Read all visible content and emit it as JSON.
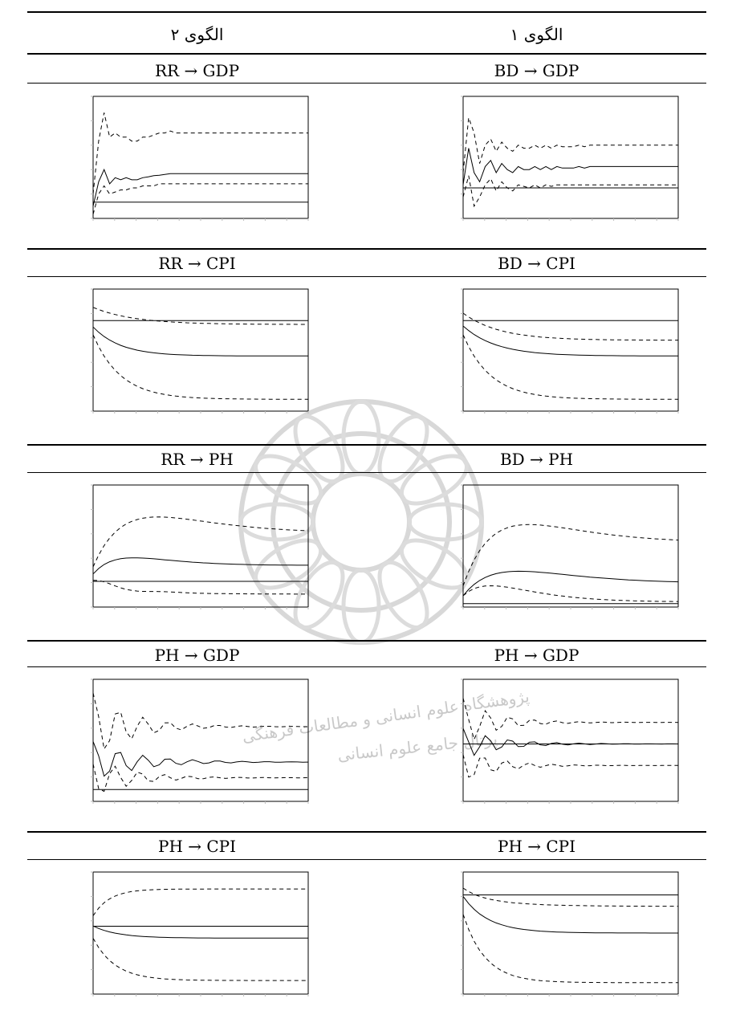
{
  "header": {
    "left_title": "الگوی ۲",
    "right_title": "الگوی ۱"
  },
  "watermark": {
    "line1": "پژوهشگاه علوم انسانی و مطالعات فرهنگی",
    "line2": "پرتال جامع علوم انسانی"
  },
  "rows": [
    {
      "left_label": "RR → GDP",
      "right_label": "BD → GDP"
    },
    {
      "left_label": "RR → CPI",
      "right_label": "BD → CPI"
    },
    {
      "left_label": "RR → PH",
      "right_label": "BD → PH"
    },
    {
      "left_label": "PH → GDP",
      "right_label": "PH → GDP"
    },
    {
      "left_label": "PH → CPI",
      "right_label": "PH → CPI"
    }
  ],
  "chart_data": [
    {
      "panel": "RR → GDP",
      "type": "line",
      "x": [
        1,
        2,
        3,
        4,
        5,
        6,
        7,
        8,
        9,
        10,
        11,
        12,
        13,
        14,
        15,
        16,
        17,
        18,
        19,
        20,
        21,
        22,
        23,
        24,
        25,
        26,
        27,
        28,
        29,
        30,
        31,
        32,
        33,
        34,
        35,
        36,
        37,
        38,
        39,
        40
      ],
      "series": [
        {
          "style": "solid",
          "values": [
            -0.1,
            0.5,
            0.8,
            0.45,
            0.6,
            0.55,
            0.6,
            0.55,
            0.55,
            0.6,
            0.62,
            0.65,
            0.66,
            0.68,
            0.7,
            0.7,
            0.7,
            0.7,
            0.7,
            0.7,
            0.7,
            0.7,
            0.7,
            0.7,
            0.7,
            0.7,
            0.7,
            0.7,
            0.7,
            0.7,
            0.7,
            0.7,
            0.7,
            0.7,
            0.7,
            0.7,
            0.7,
            0.7,
            0.7,
            0.7
          ]
        },
        {
          "style": "dashed",
          "values": [
            0.2,
            1.5,
            2.2,
            1.6,
            1.7,
            1.6,
            1.6,
            1.5,
            1.5,
            1.6,
            1.6,
            1.65,
            1.7,
            1.7,
            1.75,
            1.7,
            1.7,
            1.7,
            1.7,
            1.7,
            1.7,
            1.7,
            1.7,
            1.7,
            1.7,
            1.7,
            1.7,
            1.7,
            1.7,
            1.7,
            1.7,
            1.7,
            1.7,
            1.7,
            1.7,
            1.7,
            1.7,
            1.7,
            1.7,
            1.7
          ]
        },
        {
          "style": "dashed",
          "values": [
            -0.3,
            0.2,
            0.4,
            0.2,
            0.25,
            0.3,
            0.3,
            0.35,
            0.35,
            0.4,
            0.4,
            0.4,
            0.45,
            0.45,
            0.45,
            0.45,
            0.45,
            0.45,
            0.45,
            0.45,
            0.45,
            0.45,
            0.45,
            0.45,
            0.45,
            0.45,
            0.45,
            0.45,
            0.45,
            0.45,
            0.45,
            0.45,
            0.45,
            0.45,
            0.45,
            0.45,
            0.45,
            0.45,
            0.45,
            0.45
          ]
        }
      ],
      "ylim": [
        -0.4,
        2.6
      ],
      "zero": 0
    },
    {
      "panel": "BD → GDP",
      "type": "line",
      "x": [
        1,
        2,
        3,
        4,
        5,
        6,
        7,
        8,
        9,
        10,
        11,
        12,
        13,
        14,
        15,
        16,
        17,
        18,
        19,
        20,
        21,
        22,
        23,
        24,
        25,
        26,
        27,
        28,
        29,
        30,
        31,
        32,
        33,
        34,
        35,
        36,
        37,
        38,
        39,
        40
      ],
      "series": [
        {
          "style": "solid",
          "values": [
            0.1,
            1.3,
            0.5,
            0.2,
            0.7,
            0.9,
            0.5,
            0.8,
            0.6,
            0.5,
            0.7,
            0.6,
            0.6,
            0.7,
            0.6,
            0.7,
            0.6,
            0.7,
            0.65,
            0.65,
            0.65,
            0.7,
            0.65,
            0.7,
            0.7,
            0.7,
            0.7,
            0.7,
            0.7,
            0.7,
            0.7,
            0.7,
            0.7,
            0.7,
            0.7,
            0.7,
            0.7,
            0.7,
            0.7,
            0.7
          ]
        },
        {
          "style": "dashed",
          "values": [
            0.5,
            2.3,
            1.8,
            0.8,
            1.4,
            1.6,
            1.2,
            1.5,
            1.3,
            1.2,
            1.4,
            1.3,
            1.3,
            1.4,
            1.3,
            1.4,
            1.3,
            1.4,
            1.35,
            1.35,
            1.35,
            1.4,
            1.35,
            1.4,
            1.4,
            1.4,
            1.4,
            1.4,
            1.4,
            1.4,
            1.4,
            1.4,
            1.4,
            1.4,
            1.4,
            1.4,
            1.4,
            1.4,
            1.4,
            1.4
          ]
        },
        {
          "style": "dashed",
          "values": [
            -0.3,
            0.4,
            -0.6,
            -0.3,
            0.1,
            0.3,
            -0.1,
            0.2,
            0.0,
            -0.1,
            0.1,
            0.05,
            0.0,
            0.1,
            0.0,
            0.1,
            0.05,
            0.1,
            0.1,
            0.1,
            0.1,
            0.1,
            0.1,
            0.1,
            0.1,
            0.1,
            0.1,
            0.1,
            0.1,
            0.1,
            0.1,
            0.1,
            0.1,
            0.1,
            0.1,
            0.1,
            0.1,
            0.1,
            0.1,
            0.1
          ]
        }
      ],
      "ylim": [
        -1.0,
        3.0
      ],
      "zero": 0
    }
  ]
}
